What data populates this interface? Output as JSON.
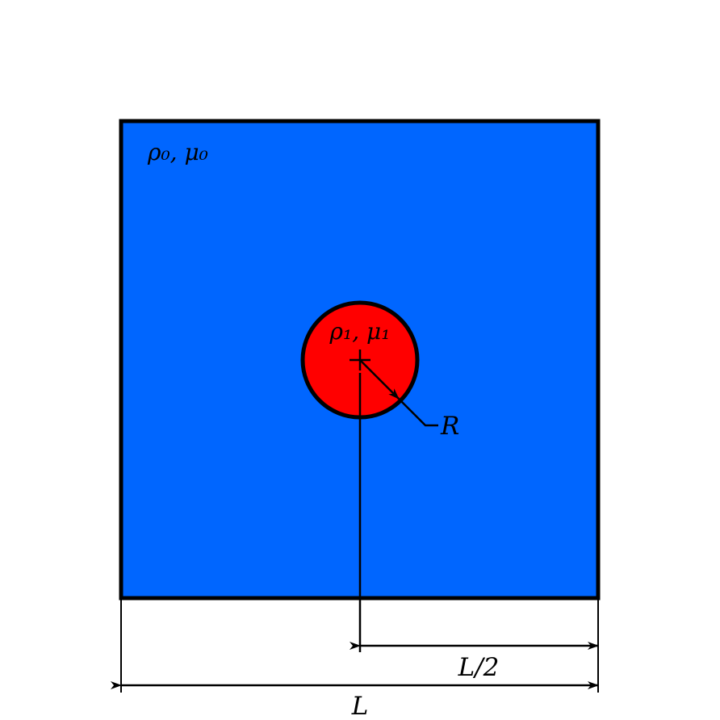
{
  "labels": {
    "outer_fluid": "ρ₀,  μ₀",
    "inner_fluid": "ρ₁,  μ₁",
    "radius": "R",
    "half_width": "L/2",
    "width": "L"
  },
  "colors": {
    "outer_domain": "#0066ff",
    "droplet": "#ff0000",
    "outline": "#000000",
    "background": "#ffffff"
  }
}
